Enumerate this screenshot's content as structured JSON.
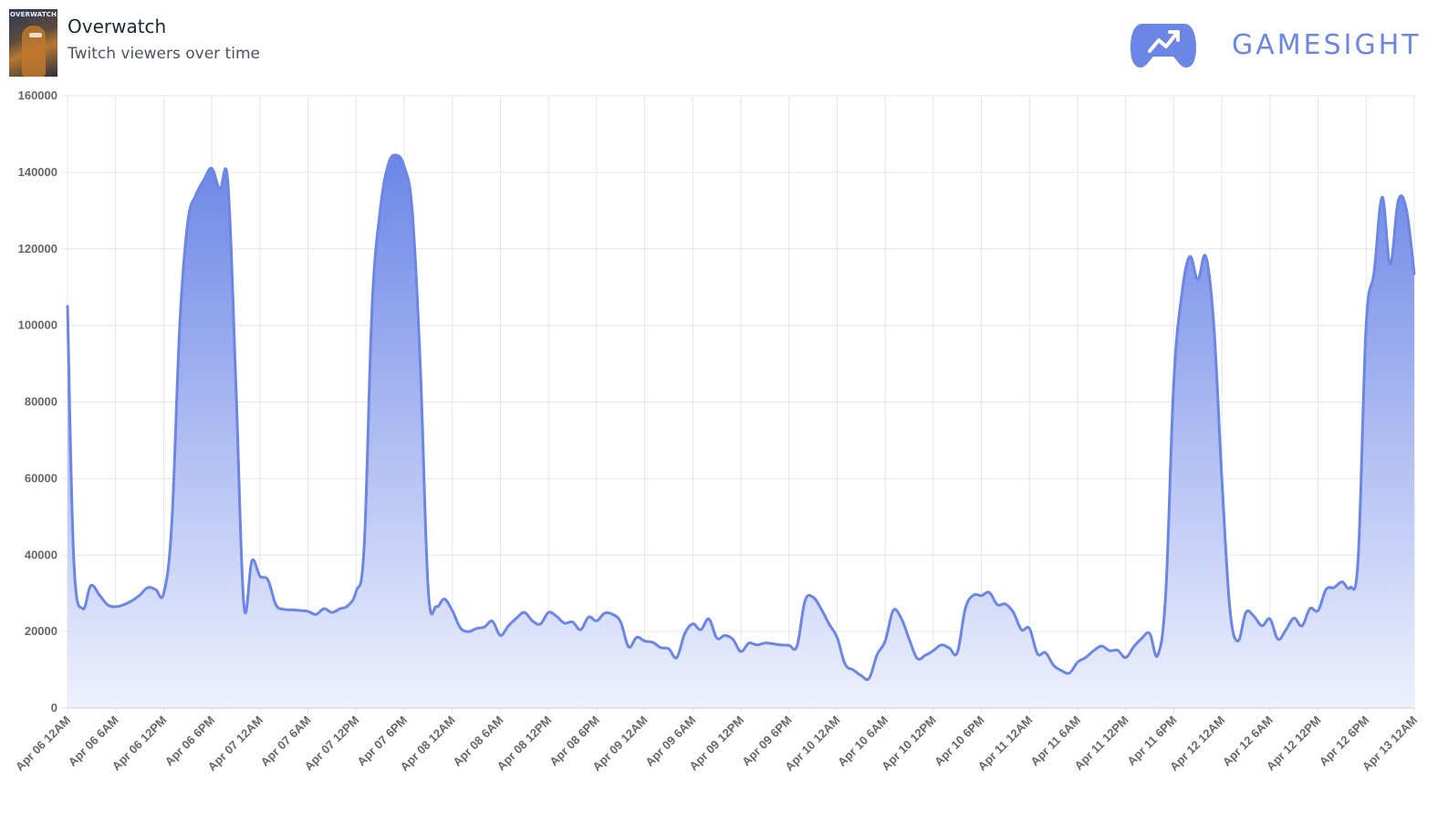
{
  "header": {
    "title": "Overwatch",
    "subtitle": "Twitch viewers over time",
    "thumbnail_label": "OVERWATCH",
    "brand_name": "GAMESIGHT",
    "brand_logo_icon": "gamepad-trend-icon"
  },
  "colors": {
    "line": "#6c86e6",
    "fill_top": "#6c86e6",
    "fill_bottom": "#eef1fd",
    "grid": "#e6e6e6",
    "brand": "#6c86e6"
  },
  "chart_data": {
    "type": "area",
    "title": "",
    "xlabel": "",
    "ylabel": "",
    "ylim": [
      0,
      160000
    ],
    "x_range_hours": [
      0,
      168
    ],
    "grid": true,
    "legend": "none",
    "y_ticks": [
      "0",
      "20000",
      "40000",
      "60000",
      "80000",
      "100000",
      "120000",
      "140000",
      "160000"
    ],
    "x_ticks": [
      "Apr 06 12AM",
      "Apr 06 6AM",
      "Apr 06 12PM",
      "Apr 06 6PM",
      "Apr 07 12AM",
      "Apr 07 6AM",
      "Apr 07 12PM",
      "Apr 07 6PM",
      "Apr 08 12AM",
      "Apr 08 6AM",
      "Apr 08 12PM",
      "Apr 08 6PM",
      "Apr 09 12AM",
      "Apr 09 6AM",
      "Apr 09 12PM",
      "Apr 09 6PM",
      "Apr 10 12AM",
      "Apr 10 6AM",
      "Apr 10 12PM",
      "Apr 10 6PM",
      "Apr 11 12AM",
      "Apr 11 6AM",
      "Apr 11 12PM",
      "Apr 11 6PM",
      "Apr 12 12AM",
      "Apr 12 6AM",
      "Apr 12 12PM",
      "Apr 12 6PM",
      "Apr 13 12AM"
    ],
    "series": [
      {
        "name": "",
        "points": [
          [
            0,
            105000
          ],
          [
            0.8,
            38000
          ],
          [
            1.9,
            26000
          ],
          [
            2.9,
            32000
          ],
          [
            4,
            29500
          ],
          [
            5,
            27000
          ],
          [
            6,
            26500
          ],
          [
            7,
            27000
          ],
          [
            8,
            28000
          ],
          [
            9,
            29500
          ],
          [
            10,
            31500
          ],
          [
            11,
            31000
          ],
          [
            12,
            30000
          ],
          [
            13,
            48000
          ],
          [
            14,
            100000
          ],
          [
            15,
            127000
          ],
          [
            16,
            134000
          ],
          [
            17,
            138000
          ],
          [
            18,
            141000
          ],
          [
            19,
            135500
          ],
          [
            20,
            137500
          ],
          [
            21,
            85000
          ],
          [
            22,
            27000
          ],
          [
            23,
            38500
          ],
          [
            24,
            34500
          ],
          [
            25,
            33500
          ],
          [
            26,
            27000
          ],
          [
            27,
            25800
          ],
          [
            28,
            25700
          ],
          [
            29,
            25500
          ],
          [
            30,
            25300
          ],
          [
            31,
            24500
          ],
          [
            32,
            26000
          ],
          [
            33,
            25000
          ],
          [
            34,
            26000
          ],
          [
            35,
            26800
          ],
          [
            36,
            30500
          ],
          [
            37,
            42000
          ],
          [
            38,
            105000
          ],
          [
            39,
            130000
          ],
          [
            40,
            142000
          ],
          [
            41,
            144500
          ],
          [
            42,
            141500
          ],
          [
            43,
            130000
          ],
          [
            44,
            90000
          ],
          [
            45,
            31000
          ],
          [
            46,
            26500
          ],
          [
            47,
            28500
          ],
          [
            48,
            25500
          ],
          [
            49,
            21000
          ],
          [
            50,
            20000
          ],
          [
            51,
            20800
          ],
          [
            52,
            21200
          ],
          [
            53,
            22700
          ],
          [
            54,
            19000
          ],
          [
            55,
            21500
          ],
          [
            56,
            23500
          ],
          [
            57,
            25000
          ],
          [
            58,
            22800
          ],
          [
            59,
            22000
          ],
          [
            60,
            25000
          ],
          [
            61,
            24000
          ],
          [
            62,
            22200
          ],
          [
            63,
            22500
          ],
          [
            64,
            20500
          ],
          [
            65,
            23800
          ],
          [
            66,
            22800
          ],
          [
            67,
            24800
          ],
          [
            68,
            24500
          ],
          [
            69,
            22500
          ],
          [
            70,
            16000
          ],
          [
            71,
            18500
          ],
          [
            72,
            17500
          ],
          [
            73,
            17200
          ],
          [
            74,
            15800
          ],
          [
            75,
            15500
          ],
          [
            76,
            13200
          ],
          [
            77,
            19500
          ],
          [
            78,
            22000
          ],
          [
            79,
            20500
          ],
          [
            80,
            23300
          ],
          [
            81,
            18300
          ],
          [
            82,
            19000
          ],
          [
            83,
            18000
          ],
          [
            84,
            14800
          ],
          [
            85,
            17000
          ],
          [
            86,
            16500
          ],
          [
            87,
            17000
          ],
          [
            88,
            16800
          ],
          [
            89,
            16500
          ],
          [
            90,
            16400
          ],
          [
            91,
            16200
          ],
          [
            92,
            28000
          ],
          [
            93,
            29000
          ],
          [
            94,
            26000
          ],
          [
            95,
            22000
          ],
          [
            96,
            18500
          ],
          [
            97,
            11500
          ],
          [
            98,
            10000
          ],
          [
            99,
            8500
          ],
          [
            100,
            7800
          ],
          [
            101,
            14000
          ],
          [
            102,
            17500
          ],
          [
            103,
            25500
          ],
          [
            104,
            23500
          ],
          [
            105,
            18000
          ],
          [
            106,
            13000
          ],
          [
            107,
            13800
          ],
          [
            108,
            15000
          ],
          [
            109,
            16500
          ],
          [
            110,
            15700
          ],
          [
            111,
            14500
          ],
          [
            112,
            26000
          ],
          [
            113,
            29500
          ],
          [
            114,
            29400
          ],
          [
            115,
            30200
          ],
          [
            116,
            27000
          ],
          [
            117,
            27200
          ],
          [
            118,
            25000
          ],
          [
            119,
            20500
          ],
          [
            120,
            20800
          ],
          [
            121,
            14200
          ],
          [
            122,
            14500
          ],
          [
            123,
            11200
          ],
          [
            124,
            9800
          ],
          [
            125,
            9200
          ],
          [
            126,
            12000
          ],
          [
            127,
            13200
          ],
          [
            128,
            15000
          ],
          [
            129,
            16200
          ],
          [
            130,
            15000
          ],
          [
            131,
            15100
          ],
          [
            132,
            13200
          ],
          [
            133,
            16000
          ],
          [
            134,
            18200
          ],
          [
            135,
            19500
          ],
          [
            136,
            13800
          ],
          [
            137,
            30000
          ],
          [
            138,
            85000
          ],
          [
            139,
            108000
          ],
          [
            140,
            118000
          ],
          [
            141,
            112000
          ],
          [
            142,
            118000
          ],
          [
            143,
            100000
          ],
          [
            144,
            60000
          ],
          [
            145,
            26000
          ],
          [
            146,
            17500
          ],
          [
            147,
            25000
          ],
          [
            148,
            24000
          ],
          [
            149,
            21500
          ],
          [
            150,
            23300
          ],
          [
            151,
            18000
          ],
          [
            152,
            20500
          ],
          [
            153,
            23500
          ],
          [
            154,
            21500
          ],
          [
            155,
            26000
          ],
          [
            156,
            25500
          ],
          [
            157,
            31000
          ],
          [
            158,
            31500
          ],
          [
            159,
            33000
          ],
          [
            160,
            31500
          ],
          [
            161,
            39000
          ],
          [
            162,
            100000
          ],
          [
            163,
            114000
          ],
          [
            164,
            133500
          ],
          [
            165,
            116000
          ],
          [
            166,
            132500
          ],
          [
            167,
            130500
          ],
          [
            168,
            113500
          ]
        ]
      }
    ]
  }
}
